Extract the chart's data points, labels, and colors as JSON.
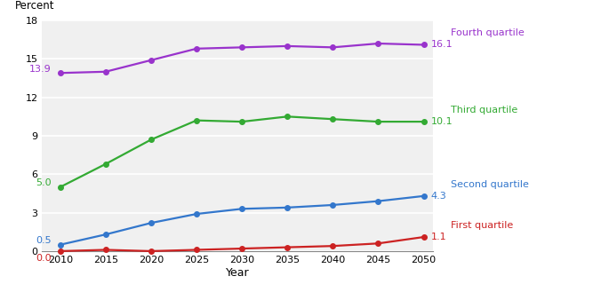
{
  "years": [
    2010,
    2015,
    2020,
    2025,
    2030,
    2035,
    2040,
    2045,
    2050
  ],
  "fourth_quartile": [
    13.9,
    14.0,
    14.9,
    15.8,
    15.9,
    16.0,
    15.9,
    16.2,
    16.1
  ],
  "third_quartile": [
    5.0,
    6.8,
    8.7,
    10.2,
    10.1,
    10.5,
    10.3,
    10.1,
    10.1
  ],
  "second_quartile": [
    0.5,
    1.3,
    2.2,
    2.9,
    3.3,
    3.4,
    3.6,
    3.9,
    4.3
  ],
  "first_quartile": [
    0.0,
    0.1,
    0.0,
    0.1,
    0.2,
    0.3,
    0.4,
    0.6,
    1.1
  ],
  "colors": {
    "fourth": "#9933CC",
    "third": "#33AA33",
    "second": "#3377CC",
    "first": "#CC2222"
  },
  "labels": {
    "fourth": "Fourth quartile",
    "third": "Third quartile",
    "second": "Second quartile",
    "first": "First quartile"
  },
  "end_values": {
    "fourth": "16.1",
    "third": "10.1",
    "second": "4.3",
    "first": "1.1"
  },
  "start_values": {
    "fourth": "13.9",
    "third": "5.0",
    "second": "0.5",
    "first": "0.0"
  },
  "ylabel": "Percent",
  "xlabel": "Year",
  "ylim": [
    0,
    18
  ],
  "yticks": [
    0,
    3,
    6,
    9,
    12,
    15,
    18
  ],
  "background_color": "#f0f0f0"
}
